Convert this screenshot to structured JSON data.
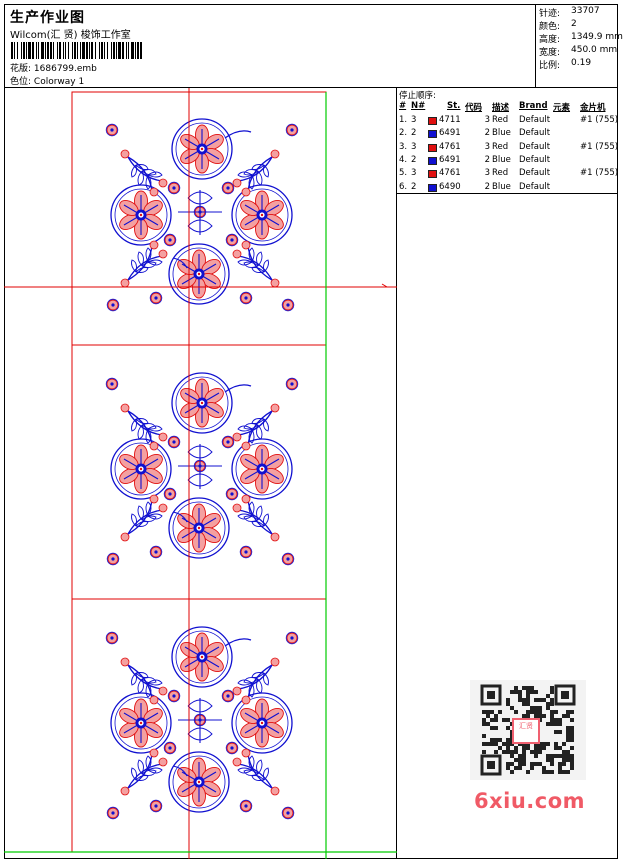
{
  "header": {
    "title": "生产作业图",
    "studio": "Wilcom(汇 贤) 梭饰工作室",
    "design_file_label": "花版:",
    "design_file": "1686799.emb",
    "colorway_label": "色位:",
    "colorway": "Colorway 1"
  },
  "stats": {
    "stitches_label": "针迹:",
    "stitches": "33707",
    "colors_label": "颜色:",
    "colors": "2",
    "height_label": "高度:",
    "height": "1349.9 mm",
    "width_label": "宽度:",
    "width": "450.0 mm",
    "scale_label": "比例:",
    "scale": "0.19"
  },
  "stop_sequence": {
    "title": "停止顺序:",
    "headers": {
      "num": "#",
      "n": "N#",
      "st": "St.",
      "code": "代码",
      "desc": "描述",
      "brand": "Brand",
      "element": "元素",
      "sequin": "金片机"
    },
    "rows": [
      {
        "num": "1.",
        "n": "3",
        "color": "#e01010",
        "st": "4711",
        "code": "3",
        "desc": "Red",
        "brand": "Default",
        "sequin": "#1 (755)"
      },
      {
        "num": "2.",
        "n": "2",
        "color": "#1010d0",
        "st": "6491",
        "code": "2",
        "desc": "Blue",
        "brand": "Default",
        "sequin": ""
      },
      {
        "num": "3.",
        "n": "3",
        "color": "#e01010",
        "st": "4761",
        "code": "3",
        "desc": "Red",
        "brand": "Default",
        "sequin": "#1 (755)"
      },
      {
        "num": "4.",
        "n": "2",
        "color": "#1010d0",
        "st": "6491",
        "code": "2",
        "desc": "Blue",
        "brand": "Default",
        "sequin": ""
      },
      {
        "num": "5.",
        "n": "3",
        "color": "#e01010",
        "st": "4761",
        "code": "3",
        "desc": "Red",
        "brand": "Default",
        "sequin": "#1 (755)"
      },
      {
        "num": "6.",
        "n": "2",
        "color": "#1010d0",
        "st": "6490",
        "code": "2",
        "desc": "Blue",
        "brand": "Default",
        "sequin": ""
      }
    ]
  },
  "colors": {
    "thread_red": "#e01010",
    "thread_blue": "#1010d0",
    "guide_red": "#e00000",
    "guide_green": "#00cc00",
    "watermark": "#f05a66"
  },
  "watermark": {
    "text": "6xiu.com",
    "stamp": "汇贤"
  }
}
